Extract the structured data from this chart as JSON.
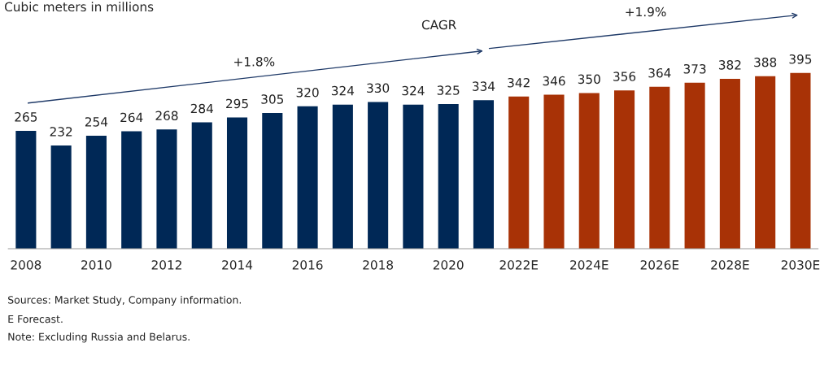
{
  "chart_data": {
    "type": "bar",
    "title": "Cubic meters in millions",
    "categories": [
      "2008",
      null,
      "2010",
      null,
      "2012",
      null,
      "2014",
      null,
      "2016",
      null,
      "2018",
      null,
      "2020",
      null,
      "2022E",
      null,
      "2024E",
      null,
      "2026E",
      null,
      "2028E",
      null,
      "2030E"
    ],
    "values": [
      265,
      232,
      254,
      264,
      268,
      284,
      295,
      305,
      320,
      324,
      330,
      324,
      325,
      334,
      342,
      346,
      350,
      356,
      364,
      373,
      382,
      388,
      395
    ],
    "colors": [
      "#002856",
      "#002856",
      "#002856",
      "#002856",
      "#002856",
      "#002856",
      "#002856",
      "#002856",
      "#002856",
      "#002856",
      "#002856",
      "#002856",
      "#002856",
      "#002856",
      "#a83206",
      "#a83206",
      "#a83206",
      "#a83206",
      "#a83206",
      "#a83206",
      "#a83206",
      "#a83206",
      "#a83206"
    ],
    "data_labels": true,
    "grid": false,
    "legend": false,
    "tick_labels": "x",
    "annotations": [
      "CAGR",
      "+1.8%",
      "+1.9%",
      "Sources: Market Study, Company information.",
      "E Forecast.",
      "Note: Excluding Russia and Belarus."
    ]
  }
}
